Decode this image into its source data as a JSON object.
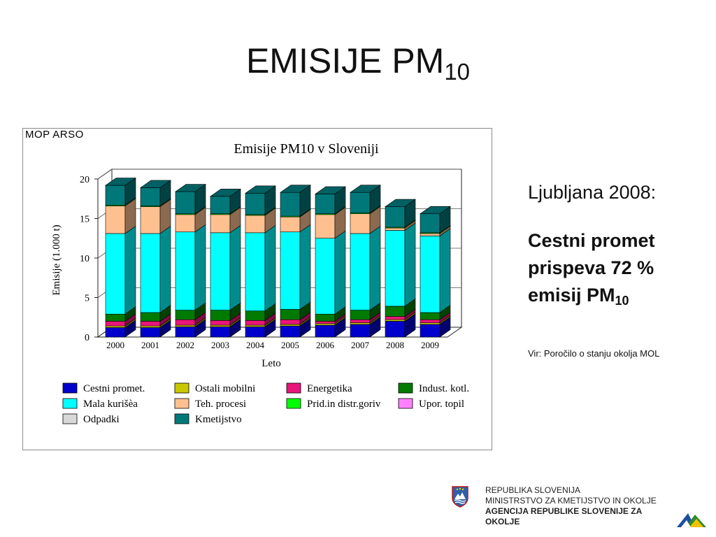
{
  "slide": {
    "title": "EMISIJE PM",
    "title_sub": "10"
  },
  "chart_source_label": "MOP ARSO",
  "side": {
    "city_line": "Ljubljana 2008:",
    "highlight_line1": "Cestni promet",
    "highlight_line2": "prispeva 72 %",
    "highlight_line3": "emisij PM",
    "highlight_sub": "10",
    "source_note": "Vir: Poročilo o stanju okolja MOL"
  },
  "agency": {
    "line1": "REPUBLIKA SLOVENIJA",
    "line2": "MINISTRSTVO ZA KMETIJSTVO IN OKOLJE",
    "line3": "AGENCIJA REPUBLIKE SLOVENIJE ZA",
    "line4": "OKOLJE"
  },
  "chart_data": {
    "type": "bar",
    "stacked": true,
    "three_d": true,
    "title": "Emisije PM10 v Sloveniji",
    "xlabel": "Leto",
    "ylabel": "Emisije (1.000 t)",
    "ylim": [
      0,
      20
    ],
    "yticks": [
      0,
      5,
      10,
      15,
      20
    ],
    "grid": true,
    "legend_position": "bottom",
    "categories": [
      "2000",
      "2001",
      "2002",
      "2003",
      "2004",
      "2005",
      "2006",
      "2007",
      "2008",
      "2009"
    ],
    "series": [
      {
        "name": "Cestni promet",
        "legend_label": "Cestni promet.",
        "color": "#0000cc",
        "values": [
          1.2,
          1.2,
          1.3,
          1.3,
          1.3,
          1.4,
          1.5,
          1.6,
          2.0,
          1.6
        ]
      },
      {
        "name": "Ostali mobilni",
        "legend_label": "Ostali mobilni",
        "color": "#c8c800",
        "values": [
          0.2,
          0.2,
          0.2,
          0.2,
          0.2,
          0.2,
          0.2,
          0.2,
          0.2,
          0.2
        ]
      },
      {
        "name": "Energetika",
        "legend_label": "Energetika",
        "color": "#e8157a",
        "values": [
          0.6,
          0.6,
          0.7,
          0.6,
          0.6,
          0.6,
          0.3,
          0.4,
          0.4,
          0.4
        ]
      },
      {
        "name": "Indust. kotl.",
        "legend_label": "Indust. kotl.",
        "color": "#007a00",
        "values": [
          0.9,
          1.1,
          1.2,
          1.3,
          1.2,
          1.3,
          0.9,
          1.2,
          1.3,
          0.9
        ]
      },
      {
        "name": "Mala kurišča",
        "legend_label": "Mala kurišèa",
        "color": "#00ffff",
        "values": [
          10.2,
          10.0,
          9.9,
          9.8,
          9.9,
          9.8,
          9.6,
          9.7,
          9.6,
          9.7
        ]
      },
      {
        "name": "Teh. procesi",
        "legend_label": "Teh. procesi",
        "color": "#ffc090",
        "values": [
          3.5,
          3.4,
          2.2,
          2.3,
          2.2,
          1.9,
          3.0,
          2.5,
          0.3,
          0.3
        ]
      },
      {
        "name": "Prid.in distr.goriv",
        "legend_label": "Prid.in distr.goriv",
        "color": "#00ff00",
        "values": [
          0.1,
          0.1,
          0.1,
          0.1,
          0.1,
          0.1,
          0.1,
          0.1,
          0.1,
          0.1
        ]
      },
      {
        "name": "Upor. topil",
        "legend_label": "Upor. topil",
        "color": "#ff80ff",
        "values": [
          0.0,
          0.0,
          0.0,
          0.0,
          0.0,
          0.0,
          0.0,
          0.0,
          0.0,
          0.0
        ]
      },
      {
        "name": "Odpadki",
        "legend_label": "Odpadki",
        "color": "#d8d8d8",
        "values": [
          0.0,
          0.0,
          0.0,
          0.0,
          0.0,
          0.0,
          0.0,
          0.0,
          0.0,
          0.0
        ]
      },
      {
        "name": "Kmetijstvo",
        "legend_label": "Kmetijstvo",
        "color": "#00787a",
        "values": [
          2.5,
          2.3,
          2.8,
          2.2,
          2.7,
          3.0,
          2.5,
          2.6,
          2.6,
          2.4
        ]
      }
    ]
  }
}
